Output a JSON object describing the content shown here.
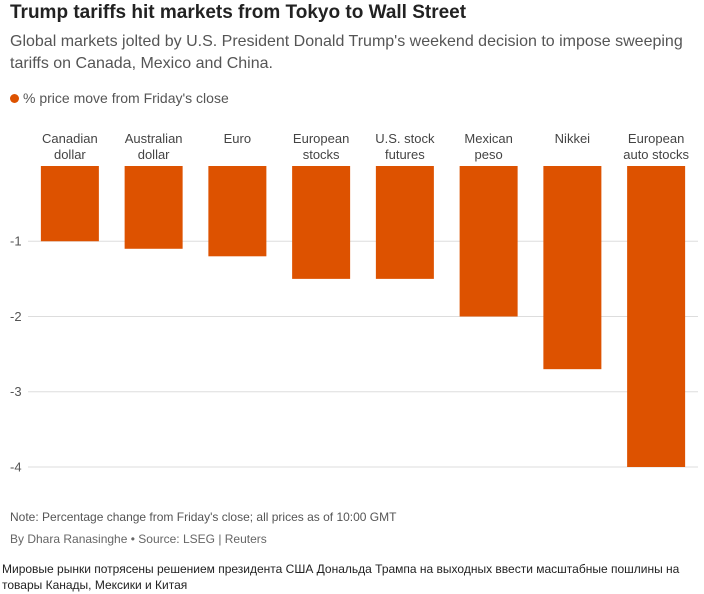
{
  "chart_data": {
    "type": "bar",
    "title": "Trump tariffs hit markets from Tokyo to Wall Street",
    "subtitle": "Global markets jolted by U.S. President Donald Trump's weekend decision to impose sweeping tariffs on Canada, Mexico and China.",
    "categories": [
      "Canadian\ndollar",
      "Australian\ndollar",
      "Euro",
      "European\nstocks",
      "U.S. stock\nfutures",
      "Mexican\npeso",
      "Nikkei",
      "European\nauto stocks"
    ],
    "series": [
      {
        "name": "% price move from Friday's close",
        "color": "#dd5200",
        "values": [
          -1.0,
          -1.1,
          -1.2,
          -1.5,
          -1.5,
          -2.0,
          -2.7,
          -4.0
        ]
      }
    ],
    "ylim": [
      -4,
      0
    ],
    "yticks": [
      -1,
      -2,
      -3,
      -4
    ],
    "grid": true,
    "note": "Note: Percentage change from Friday's close; all prices as of 10:00 GMT",
    "source": "By Dhara Ranasinghe • Source: LSEG | Reuters",
    "caption": "Мировые рынки потрясены решением президента США Дональда Трампа на выходных ввести масштабные пошлины на товары Канады, Мексики и Китая"
  }
}
